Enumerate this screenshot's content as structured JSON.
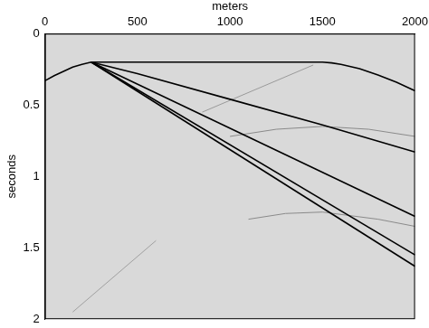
{
  "chart_data": {
    "type": "line",
    "x_label": "meters",
    "y_label": "seconds",
    "xlim": [
      0,
      2000
    ],
    "xticks": [
      0,
      500,
      1000,
      1500,
      2000
    ],
    "ylim": [
      2,
      0
    ],
    "yticks": [
      0,
      0.5,
      1,
      1.5,
      2
    ],
    "grid": false,
    "series": [
      {
        "color": "#000000",
        "line_style": "solid",
        "x": [
          0,
          50,
          100,
          150,
          200,
          250,
          1500,
          1550,
          1600,
          1700,
          1800,
          1900,
          2000
        ],
        "values": [
          0.33,
          0.295,
          0.265,
          0.235,
          0.215,
          0.2,
          0.2,
          0.205,
          0.215,
          0.245,
          0.29,
          0.34,
          0.4
        ]
      },
      {
        "color": "#000000",
        "line_style": "solid",
        "x": [
          250,
          500,
          1000,
          1500,
          2000
        ],
        "values": [
          0.2,
          0.28,
          0.46,
          0.64,
          0.83
        ]
      },
      {
        "color": "#000000",
        "line_style": "solid",
        "x": [
          250,
          2000
        ],
        "values": [
          0.2,
          1.28
        ]
      },
      {
        "color": "#000000",
        "line_style": "solid",
        "x": [
          250,
          2000
        ],
        "values": [
          0.2,
          1.55
        ]
      },
      {
        "color": "#000000",
        "line_style": "solid",
        "x": [
          250,
          2000
        ],
        "values": [
          0.2,
          1.63
        ]
      },
      {
        "color": "#8a8a8a",
        "line_style": "solid",
        "x": [
          1000,
          1250,
          1500,
          1750,
          2000
        ],
        "values": [
          0.72,
          0.67,
          0.65,
          0.67,
          0.72
        ]
      },
      {
        "color": "#8a8a8a",
        "line_style": "solid",
        "x": [
          1100,
          1300,
          1500,
          1800,
          2000
        ],
        "values": [
          1.3,
          1.26,
          1.25,
          1.3,
          1.35
        ]
      },
      {
        "color": "#9a9a9a",
        "line_style": "solid",
        "x": [
          850,
          1450
        ],
        "values": [
          0.55,
          0.22
        ]
      },
      {
        "color": "#a0a0a0",
        "line_style": "solid",
        "x": [
          150,
          600
        ],
        "values": [
          1.95,
          1.45
        ]
      }
    ]
  }
}
